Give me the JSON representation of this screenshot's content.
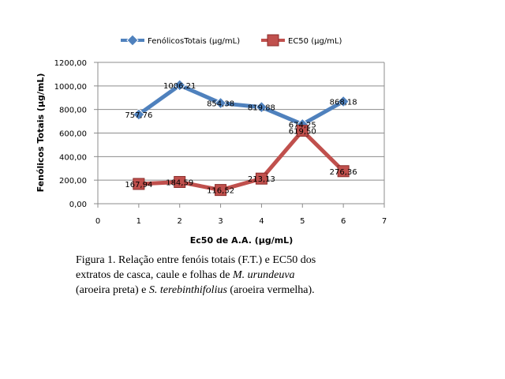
{
  "chart_data": {
    "type": "line",
    "xlabel": "Ec50 de A.A. (µg/mL)",
    "ylabel": "Fenólicos Totais (µg/mL)",
    "xlim": [
      0,
      7
    ],
    "ylim": [
      0,
      1200
    ],
    "x_ticks": [
      "0",
      "1",
      "2",
      "3",
      "4",
      "5",
      "6",
      "7"
    ],
    "y_ticks": [
      "0,00",
      "200,00",
      "400,00",
      "600,00",
      "800,00",
      "1000,00",
      "1200,00"
    ],
    "grid": "horizontal",
    "legend_position": "top",
    "x": [
      1,
      2,
      3,
      4,
      5,
      6
    ],
    "series": [
      {
        "name": "FenólicosTotais (µg/mL)",
        "color": "#4F81BD",
        "marker": "diamond",
        "values": [
          757.76,
          1006.21,
          854.38,
          819.88,
          674.25,
          868.18
        ],
        "labels": [
          "757,76",
          "1006,21",
          "854,38",
          "819,88",
          "674,25",
          "868,18"
        ]
      },
      {
        "name": "EC50 (µg/mL)",
        "color": "#C0504D",
        "marker": "square",
        "values": [
          167.94,
          184.59,
          116.52,
          213.13,
          619.5,
          276.36
        ],
        "labels": [
          "167,94",
          "184,59",
          "116,52",
          "213,13",
          "619,50",
          "276,36"
        ]
      }
    ]
  },
  "caption": {
    "line1": "Figura 1. Relação entre fenóis totais (F.T.) e EC50 dos",
    "line2_start": "extratos de casca, caule e folhas de ",
    "line2_italic": "M. urundeuva",
    "line3_start": "(aroeira preta) e ",
    "line3_italic": "S. terebinthifolius",
    "line3_end": "  (aroeira vermelha)."
  }
}
